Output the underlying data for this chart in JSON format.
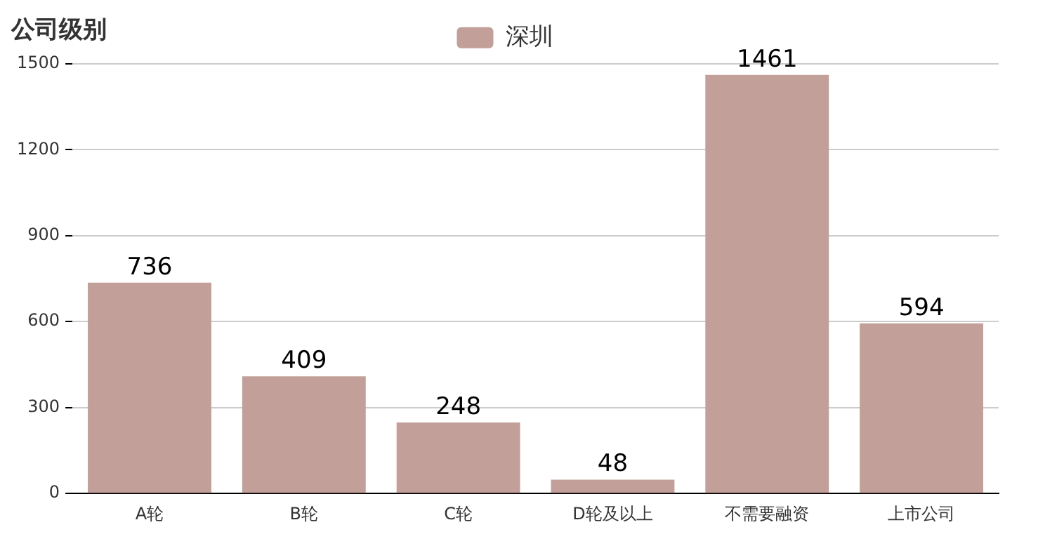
{
  "chart_data": {
    "type": "bar",
    "title": "公司级别",
    "categories": [
      "A轮",
      "B轮",
      "C轮",
      "D轮及以上",
      "不需要融资",
      "上市公司"
    ],
    "series": [
      {
        "name": "深圳",
        "color": "#c29f98",
        "values": [
          736,
          409,
          248,
          48,
          1461,
          594
        ]
      }
    ],
    "ylim": [
      0,
      1500
    ],
    "yticks": [
      0,
      300,
      600,
      900,
      1200,
      1500
    ],
    "grid": "y",
    "legend": "top",
    "data_labels": true
  }
}
